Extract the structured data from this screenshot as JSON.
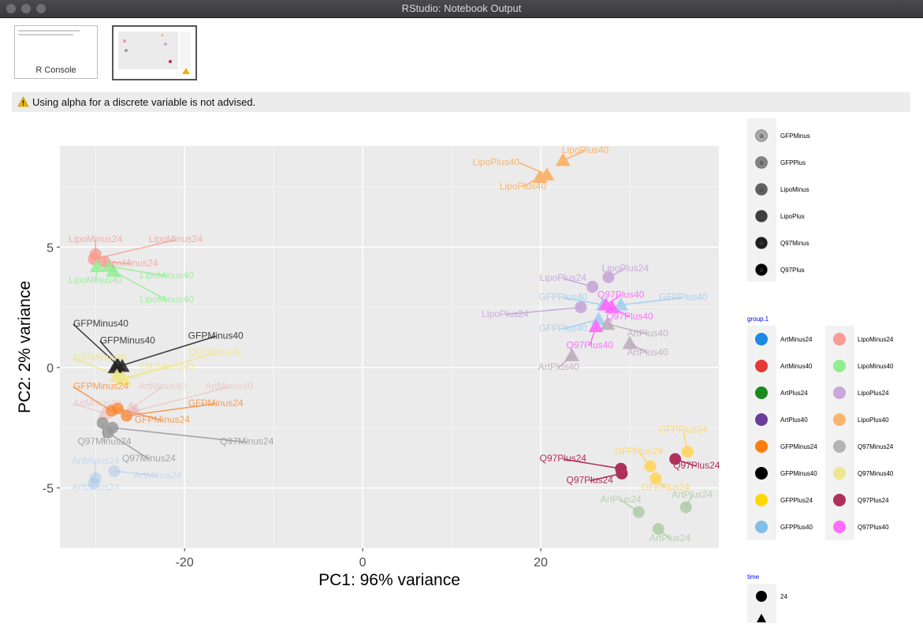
{
  "window": {
    "title": "RStudio: Notebook Output"
  },
  "thumbnails": [
    {
      "label": "R Console",
      "selected": false
    },
    {
      "label": "",
      "selected": true
    }
  ],
  "warning": {
    "text": "Using alpha for a discrete variable is not advised."
  },
  "colors": {
    "panel_bg": "#ebebeb",
    "warning_icon": "#f0b400"
  },
  "chart_data": {
    "type": "scatter",
    "xlabel": "PC1: 96% variance",
    "ylabel": "PC2: 2% variance",
    "xlim": [
      -34,
      40
    ],
    "ylim": [
      -7.5,
      9.2
    ],
    "xticks": [
      -20,
      0,
      20
    ],
    "yticks": [
      -5,
      0,
      5
    ],
    "grid": true,
    "legend_position": "right",
    "points": [
      {
        "x": 20.7,
        "y": 8.0,
        "shape": "triangle",
        "color": "#f9b46e",
        "alpha": 1.0,
        "label": "LipoPlus40",
        "lx": 17.6,
        "ly": 8.4,
        "ext": "end"
      },
      {
        "x": 22.5,
        "y": 8.6,
        "shape": "triangle",
        "color": "#f9b46e",
        "alpha": 1.0,
        "label": "LipoPlus40",
        "lx": 25.0,
        "ly": 8.9,
        "ext": "middle"
      },
      {
        "x": 19.9,
        "y": 7.9,
        "shape": "triangle",
        "color": "#f9b46e",
        "alpha": 1.0,
        "label": "LipoPlus40",
        "lx": 18.0,
        "ly": 7.4,
        "ext": "middle"
      },
      {
        "x": -30.0,
        "y": 4.7,
        "shape": "circle",
        "color": "#f8978e",
        "alpha": 0.75,
        "label": "LipoMinus24",
        "lx": -30.0,
        "ly": 5.2,
        "ext": "middle"
      },
      {
        "x": -30.2,
        "y": 4.5,
        "shape": "circle",
        "color": "#f8978e",
        "alpha": 0.75,
        "label": "LipoMinus24",
        "lx": -21.0,
        "ly": 5.2,
        "ext": "middle"
      },
      {
        "x": -29.0,
        "y": 4.4,
        "shape": "circle",
        "color": "#f8978e",
        "alpha": 0.75,
        "label": "LipoMinus24",
        "lx": -26.0,
        "ly": 4.2,
        "ext": "middle"
      },
      {
        "x": -29.8,
        "y": 4.2,
        "shape": "triangle",
        "color": "#90ee90",
        "alpha": 0.8,
        "label": "LipoMinus40",
        "lx": -30.0,
        "ly": 3.5,
        "ext": "middle"
      },
      {
        "x": -28.5,
        "y": 4.2,
        "shape": "triangle",
        "color": "#90ee90",
        "alpha": 0.8,
        "label": "LipoMinus40",
        "lx": -22.0,
        "ly": 3.7,
        "ext": "middle"
      },
      {
        "x": -28.0,
        "y": 4.0,
        "shape": "triangle",
        "color": "#90ee90",
        "alpha": 0.8,
        "label": "LipoMinus40",
        "lx": -22.0,
        "ly": 2.7,
        "ext": "middle"
      },
      {
        "x": -27.5,
        "y": 0.1,
        "shape": "triangle",
        "color": "#222222",
        "alpha": 0.85,
        "label": "GFPMinus40",
        "lx": -32.5,
        "ly": 1.7,
        "ext": "start"
      },
      {
        "x": -27.0,
        "y": 0.05,
        "shape": "triangle",
        "color": "#222222",
        "alpha": 0.85,
        "label": "GFPMinus40",
        "lx": -29.5,
        "ly": 1.0,
        "ext": "start"
      },
      {
        "x": -27.8,
        "y": 0.0,
        "shape": "triangle",
        "color": "#222222",
        "alpha": 0.85,
        "label": "GFPMinus40",
        "lx": -16.5,
        "ly": 1.2,
        "ext": "middle"
      },
      {
        "x": -27.6,
        "y": -0.35,
        "shape": "triangle",
        "color": "#f0e68c",
        "alpha": 0.9,
        "label": "Q97Minus40",
        "lx": -32.5,
        "ly": 0.3,
        "ext": "start"
      },
      {
        "x": -27.0,
        "y": -0.45,
        "shape": "triangle",
        "color": "#f0e68c",
        "alpha": 0.9,
        "label": "Q97Minus40",
        "lx": -22.0,
        "ly": -0.1,
        "ext": "middle"
      },
      {
        "x": -26.8,
        "y": -0.5,
        "shape": "triangle",
        "color": "#f0e68c",
        "alpha": 0.9,
        "label": "Q97Minus40",
        "lx": -16.5,
        "ly": 0.5,
        "ext": "middle"
      },
      {
        "x": -28.2,
        "y": -1.8,
        "shape": "circle",
        "color": "#f8842a",
        "alpha": 0.75,
        "label": "GFPMinus24",
        "lx": -32.5,
        "ly": -0.9,
        "ext": "start"
      },
      {
        "x": -26.5,
        "y": -2.0,
        "shape": "circle",
        "color": "#f8842a",
        "alpha": 0.75,
        "label": "GFPMinus24",
        "lx": -16.5,
        "ly": -1.6,
        "ext": "middle"
      },
      {
        "x": -27.5,
        "y": -1.7,
        "shape": "circle",
        "color": "#f8842a",
        "alpha": 0.75,
        "label": "GFPMinus24",
        "lx": -22.5,
        "ly": -2.3,
        "ext": "middle"
      },
      {
        "x": -29.0,
        "y": -1.9,
        "shape": "triangle",
        "color": "#e8a0a0",
        "alpha": 0.35,
        "label": "ArtMinus40",
        "lx": -32.5,
        "ly": -1.6,
        "ext": "start"
      },
      {
        "x": -26.0,
        "y": -1.7,
        "shape": "triangle",
        "color": "#e8a0a0",
        "alpha": 0.35,
        "label": "ArtMinus40",
        "lx": -22.5,
        "ly": -0.9,
        "ext": "middle"
      },
      {
        "x": -25.5,
        "y": -1.8,
        "shape": "triangle",
        "color": "#e8a0a0",
        "alpha": 0.35,
        "label": "ArtMinus40",
        "lx": -15.0,
        "ly": -0.9,
        "ext": "middle"
      },
      {
        "x": -29.2,
        "y": -2.3,
        "shape": "circle",
        "color": "#999999",
        "alpha": 0.85,
        "label": "Q97Minus24",
        "lx": -29.0,
        "ly": -3.2,
        "ext": "middle"
      },
      {
        "x": -28.1,
        "y": -2.5,
        "shape": "circle",
        "color": "#999999",
        "alpha": 0.85,
        "label": "Q97Minus24",
        "lx": -13.0,
        "ly": -3.2,
        "ext": "middle"
      },
      {
        "x": -28.6,
        "y": -2.7,
        "shape": "circle",
        "color": "#999999",
        "alpha": 0.85,
        "label": "Q97Minus24",
        "lx": -24.0,
        "ly": -3.9,
        "ext": "middle"
      },
      {
        "x": -30.0,
        "y": -4.6,
        "shape": "circle",
        "color": "#9ec3ec",
        "alpha": 0.45,
        "label": "ArtMinus24",
        "lx": -30.0,
        "ly": -4.0,
        "ext": "middle"
      },
      {
        "x": -27.9,
        "y": -4.3,
        "shape": "circle",
        "color": "#9ec3ec",
        "alpha": 0.45,
        "label": "ArtMinus24",
        "lx": -23.0,
        "ly": -4.6,
        "ext": "middle"
      },
      {
        "x": -30.2,
        "y": -4.8,
        "shape": "circle",
        "color": "#9ec3ec",
        "alpha": 0.45,
        "label": "ArtMinus24",
        "lx": -30.0,
        "ly": -5.1,
        "ext": "middle"
      },
      {
        "x": 27.6,
        "y": 3.75,
        "shape": "circle",
        "color": "#c7a6d9",
        "alpha": 0.9,
        "label": "LipoPlus24",
        "lx": 29.5,
        "ly": 4.0,
        "ext": "middle"
      },
      {
        "x": 25.8,
        "y": 3.35,
        "shape": "circle",
        "color": "#c7a6d9",
        "alpha": 0.9,
        "label": "LipoPlus24",
        "lx": 22.5,
        "ly": 3.6,
        "ext": "middle"
      },
      {
        "x": 24.5,
        "y": 2.5,
        "shape": "circle",
        "color": "#c7a6d9",
        "alpha": 0.9,
        "label": "LipoPlus24",
        "lx": 16.0,
        "ly": 2.1,
        "ext": "middle"
      },
      {
        "x": 27.0,
        "y": 2.6,
        "shape": "triangle",
        "color": "#a3cff0",
        "alpha": 0.9,
        "label": "GFPPlus40",
        "lx": 22.5,
        "ly": 2.8,
        "ext": "middle"
      },
      {
        "x": 29.0,
        "y": 2.6,
        "shape": "triangle",
        "color": "#a3cff0",
        "alpha": 0.9,
        "label": "GFPPlus40",
        "lx": 36.0,
        "ly": 2.8,
        "ext": "middle"
      },
      {
        "x": 26.5,
        "y": 2.0,
        "shape": "triangle",
        "color": "#a3cff0",
        "alpha": 0.9,
        "label": "GFPPlus40",
        "lx": 22.5,
        "ly": 1.5,
        "ext": "middle"
      },
      {
        "x": 27.3,
        "y": 2.6,
        "shape": "triangle",
        "color": "#ff66ff",
        "alpha": 0.9,
        "label": "Q97Plus40",
        "lx": 29.0,
        "ly": 2.9,
        "ext": "middle"
      },
      {
        "x": 28.0,
        "y": 2.5,
        "shape": "triangle",
        "color": "#ff66ff",
        "alpha": 0.9,
        "label": "Q97Plus40",
        "lx": 30.0,
        "ly": 2.0,
        "ext": "middle"
      },
      {
        "x": 26.2,
        "y": 1.7,
        "shape": "triangle",
        "color": "#ff66ff",
        "alpha": 0.9,
        "label": "Q97Plus40",
        "lx": 25.5,
        "ly": 0.8,
        "ext": "middle"
      },
      {
        "x": 27.5,
        "y": 1.8,
        "shape": "triangle",
        "color": "#b5a0b5",
        "alpha": 0.75,
        "label": "ArtPlus40",
        "lx": 32.0,
        "ly": 1.3,
        "ext": "middle"
      },
      {
        "x": 23.5,
        "y": 0.5,
        "shape": "triangle",
        "color": "#b5a0b5",
        "alpha": 0.75,
        "label": "ArtPlus40",
        "lx": 22.0,
        "ly": -0.1,
        "ext": "middle"
      },
      {
        "x": 30.0,
        "y": 1.0,
        "shape": "triangle",
        "color": "#b5a0b5",
        "alpha": 0.75,
        "label": "ArtPlus40",
        "lx": 32.0,
        "ly": 0.5,
        "ext": "middle"
      },
      {
        "x": 36.5,
        "y": -3.5,
        "shape": "circle",
        "color": "#fed76b",
        "alpha": 1.0,
        "label": "GFPPlus24",
        "lx": 36.0,
        "ly": -2.7,
        "ext": "middle"
      },
      {
        "x": 32.3,
        "y": -4.1,
        "shape": "circle",
        "color": "#fed76b",
        "alpha": 1.0,
        "label": "GFPPlus24",
        "lx": 31.0,
        "ly": -3.6,
        "ext": "middle"
      },
      {
        "x": 32.9,
        "y": -4.6,
        "shape": "circle",
        "color": "#fed76b",
        "alpha": 1.0,
        "label": "GFPPlus24",
        "lx": 34.0,
        "ly": -5.1,
        "ext": "middle"
      },
      {
        "x": 35.1,
        "y": -3.8,
        "shape": "circle",
        "color": "#b0305c",
        "alpha": 1.0,
        "label": "Q97Plus24",
        "lx": 37.5,
        "ly": -4.2,
        "ext": "middle"
      },
      {
        "x": 29.0,
        "y": -4.2,
        "shape": "circle",
        "color": "#b0305c",
        "alpha": 1.0,
        "label": "Q97Plus24",
        "lx": 22.5,
        "ly": -3.9,
        "ext": "middle"
      },
      {
        "x": 29.1,
        "y": -4.4,
        "shape": "circle",
        "color": "#b0305c",
        "alpha": 1.0,
        "label": "Q97Plus24",
        "lx": 25.5,
        "ly": -4.8,
        "ext": "middle"
      },
      {
        "x": 31.0,
        "y": -6.0,
        "shape": "circle",
        "color": "#a7c79d",
        "alpha": 0.75,
        "label": "ArtPlus24",
        "lx": 29.0,
        "ly": -5.6,
        "ext": "middle"
      },
      {
        "x": 36.3,
        "y": -5.8,
        "shape": "circle",
        "color": "#a7c79d",
        "alpha": 0.75,
        "label": "ArtPlus24",
        "lx": 37.0,
        "ly": -5.4,
        "ext": "middle"
      },
      {
        "x": 33.2,
        "y": -6.7,
        "shape": "circle",
        "color": "#a7c79d",
        "alpha": 0.75,
        "label": "ArtPlus24",
        "lx": 34.5,
        "ly": -7.2,
        "ext": "middle"
      }
    ],
    "legends": {
      "alpha": {
        "title": "",
        "items": [
          {
            "label": "GFPMinus",
            "alpha": 0.3
          },
          {
            "label": "GFPPlus",
            "alpha": 0.45
          },
          {
            "label": "LipoMinus",
            "alpha": 0.6
          },
          {
            "label": "LipoPlus",
            "alpha": 0.75
          },
          {
            "label": "Q97Minus",
            "alpha": 0.88
          },
          {
            "label": "Q97Plus",
            "alpha": 1.0
          }
        ]
      },
      "group": {
        "title": "group.1",
        "col1": [
          {
            "label": "ArtMinus24",
            "color": "#1e88e5"
          },
          {
            "label": "ArtMinus40",
            "color": "#e53935"
          },
          {
            "label": "ArtPlus24",
            "color": "#1a8a1a"
          },
          {
            "label": "ArtPlus40",
            "color": "#6a3d9a"
          },
          {
            "label": "GFPMinus24",
            "color": "#ff7f0e"
          },
          {
            "label": "GFPMinus40",
            "color": "#000000"
          },
          {
            "label": "GFPPlus24",
            "color": "#ffd700"
          },
          {
            "label": "GFPPlus40",
            "color": "#7fbfea"
          }
        ],
        "col2": [
          {
            "label": "LipoMinus24",
            "color": "#f99a94"
          },
          {
            "label": "LipoMinus40",
            "color": "#90ee90"
          },
          {
            "label": "LipoPlus24",
            "color": "#c9a6dc"
          },
          {
            "label": "LipoPlus40",
            "color": "#f9b46e"
          },
          {
            "label": "Q97Minus24",
            "color": "#b3b3b3"
          },
          {
            "label": "Q97Minus40",
            "color": "#ede68f"
          },
          {
            "label": "Q97Plus24",
            "color": "#b0305c"
          },
          {
            "label": "Q97Plus40",
            "color": "#ff6cff"
          }
        ]
      },
      "time": {
        "title": "time",
        "items": [
          {
            "label": "24",
            "shape": "circle"
          },
          {
            "label": "",
            "shape": "triangle"
          }
        ]
      }
    }
  }
}
